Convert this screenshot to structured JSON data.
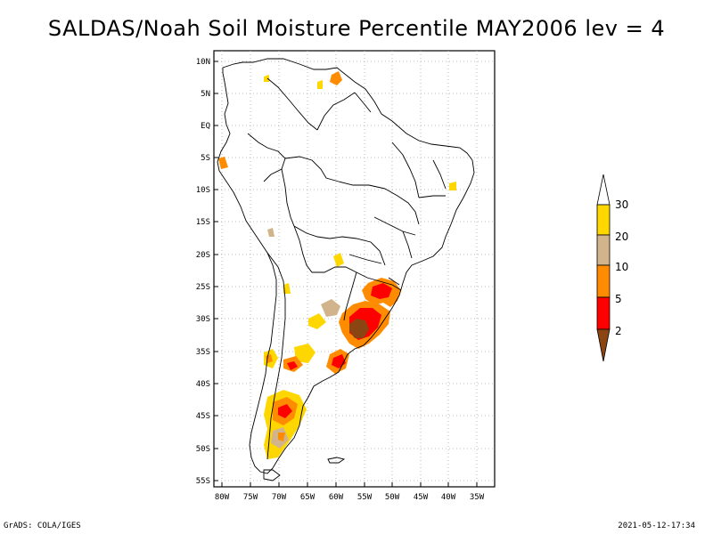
{
  "title": "SALDAS/Noah Soil Moisture Percentile MAY2006 lev = 4",
  "footer": {
    "left": "GrADS: COLA/IGES",
    "right": "2021-05-12-17:34"
  },
  "colors": {
    "brown": "#8b4513",
    "red": "#ff0000",
    "orange": "#ff8c00",
    "tan": "#d2b48c",
    "gold": "#ffd700",
    "white": "#ffffff",
    "grid": "#aaaaaa",
    "coast": "#000000"
  },
  "map": {
    "lon_range": [
      -81,
      -33
    ],
    "lat_range": [
      -56,
      12
    ],
    "lat_ticks": [
      "10N",
      "5N",
      "EQ",
      "5S",
      "10S",
      "15S",
      "20S",
      "25S",
      "30S",
      "35S",
      "40S",
      "45S",
      "50S",
      "55S"
    ],
    "lon_ticks": [
      "80W",
      "75W",
      "70W",
      "65W",
      "60W",
      "55W",
      "50W",
      "45W",
      "40W",
      "35W"
    ],
    "grid": true
  },
  "colorbar": {
    "labels": [
      "30",
      "20",
      "10",
      "5",
      "2"
    ],
    "segment_colors": [
      "#ffd700",
      "#d2b48c",
      "#ff8c00",
      "#ff0000"
    ],
    "below_color": "#8b4513",
    "above_color": "#ffffff"
  }
}
